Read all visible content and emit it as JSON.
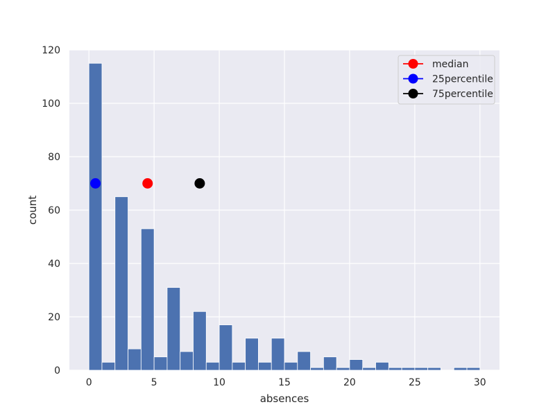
{
  "chart_data": {
    "type": "bar",
    "xlabel": "absences",
    "ylabel": "count",
    "xlim": [
      -1.5,
      31.5
    ],
    "ylim": [
      0,
      120
    ],
    "xticks": [
      0,
      5,
      10,
      15,
      20,
      25,
      30
    ],
    "yticks": [
      0,
      20,
      40,
      60,
      80,
      100,
      120
    ],
    "grid": true,
    "legend_position": "top-right",
    "bin_start": 0,
    "bin_width": 1,
    "values": [
      115,
      3,
      65,
      8,
      53,
      5,
      31,
      7,
      22,
      3,
      17,
      3,
      12,
      3,
      12,
      3,
      7,
      1,
      5,
      1,
      4,
      1,
      3,
      1,
      1,
      1,
      1,
      0,
      1,
      1
    ],
    "markers": [
      {
        "name": "median",
        "x": 4.5,
        "y": 70,
        "color": "#ff0000"
      },
      {
        "name": "25percentile",
        "x": 0.5,
        "y": 70,
        "color": "#0000ff"
      },
      {
        "name": "75percentile",
        "x": 8.5,
        "y": 70,
        "color": "#000000"
      }
    ],
    "colors": {
      "bars": "#4c72b0",
      "background": "#eaeaf2",
      "grid": "#ffffff"
    }
  }
}
